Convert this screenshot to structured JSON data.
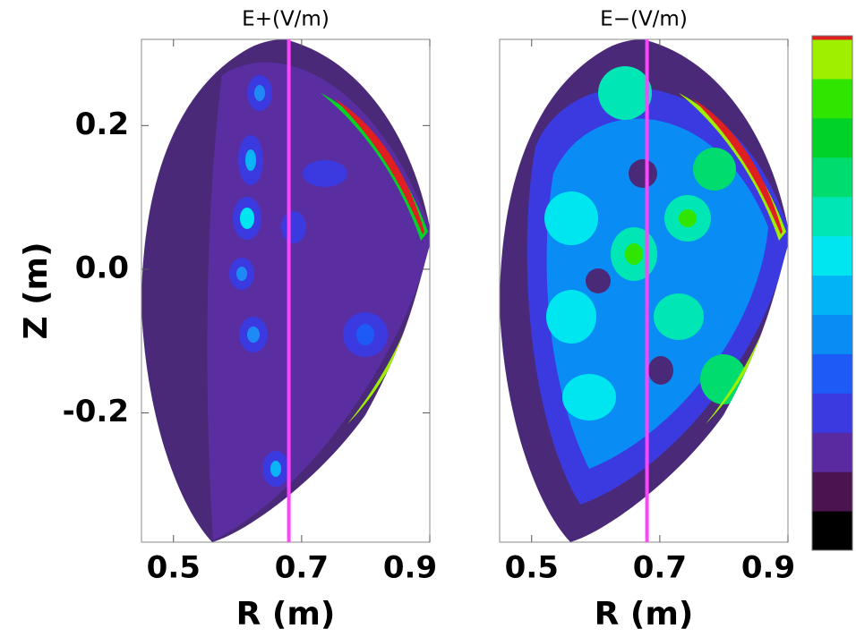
{
  "chart_data": [
    {
      "type": "contour",
      "title": "E+(V/m)",
      "xlabel": "R (m)",
      "ylabel": "Z (m)",
      "xlim": [
        0.45,
        0.9
      ],
      "xticks": [
        0.5,
        0.7,
        0.9
      ],
      "ylim": [
        -0.38,
        0.32
      ],
      "yticks": [
        {
          "value": 0.2,
          "label": "0.2"
        },
        {
          "value": 0,
          "label": "0.0"
        },
        {
          "value": -0.2,
          "label": "-0.2"
        }
      ],
      "vline_x": 0.68,
      "vline_color": "#ff44ff"
    },
    {
      "type": "contour",
      "title": "E−(V/m)",
      "xlabel": "R (m)",
      "xlim": [
        0.45,
        0.9
      ],
      "xticks": [
        0.5,
        0.7,
        0.9
      ],
      "ylim": [
        -0.38,
        0.32
      ],
      "vline_x": 0.68,
      "vline_color": "#ff44ff"
    }
  ],
  "colorbar": [
    "#000000",
    "#4a1450",
    "#5a2aa0",
    "#3a3ae0",
    "#1e5af5",
    "#0a8cf5",
    "#00b4f5",
    "#00e6f0",
    "#00e6b4",
    "#00dc6e",
    "#00d228",
    "#30e600",
    "#9ef000",
    "#e02020"
  ]
}
